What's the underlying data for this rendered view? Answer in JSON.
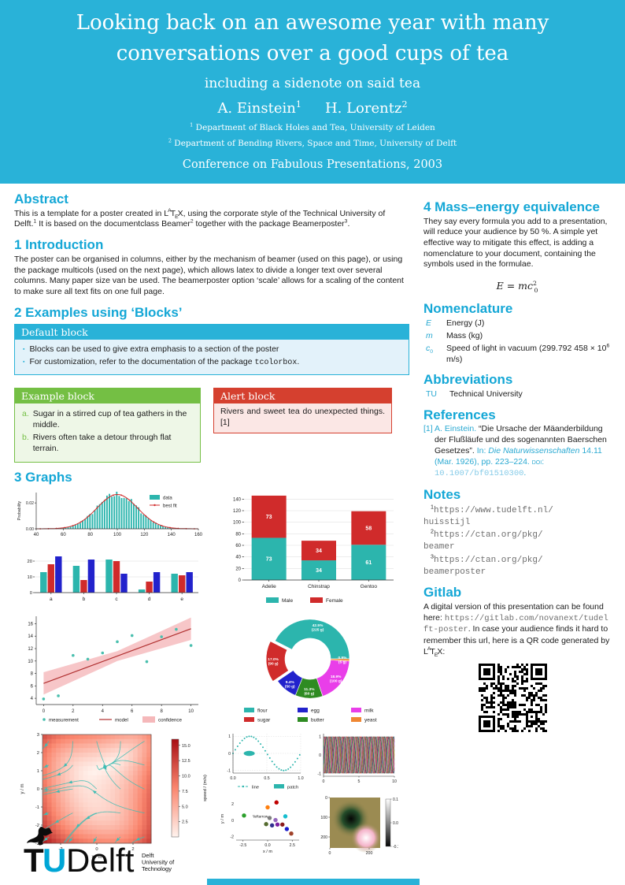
{
  "colors": {
    "header_bg": "#29b2d8",
    "heading_cyan": "#14a7d6",
    "teal": "#2cb5ad",
    "red": "#d02b2b",
    "blue": "#2222cc",
    "green_block": "#74bf44",
    "alert_red": "#d5402f",
    "stream_line": "#3fbcb4",
    "band_pink": "#f5b8ba",
    "model_red": "#b03030"
  },
  "header": {
    "title": "Looking back on an awesome year with many conversations over a good cups of tea",
    "subtitle": "including a sidenote on said tea",
    "authors": [
      {
        "t": "A. Einstein"
      },
      {
        "t": "1",
        "sup": true
      },
      {
        "t": "H. Lorentz",
        "s": "gap"
      },
      {
        "t": "2",
        "sup": true
      }
    ],
    "affil1": [
      {
        "t": "1",
        "sup": true
      },
      {
        "t": " Department of Black Holes and Tea, University of Leiden"
      }
    ],
    "affil2": [
      {
        "t": "2",
        "sup": true
      },
      {
        "t": " Department of Bending Rivers, Space and Time, University of Delft"
      }
    ],
    "conference": "Conference on Fabulous Presentations, 2003"
  },
  "abstract": {
    "heading": "Abstract",
    "body": [
      {
        "t": "This is a template for a poster created in "
      },
      {
        "t": "L"
      },
      {
        "t": "A",
        "sup": true,
        "s": "texA"
      },
      {
        "t": "T"
      },
      {
        "t": "E",
        "sub": true,
        "s": "texE"
      },
      {
        "t": "X"
      },
      {
        "t": ", using the corporate style of the Technical University of Delft."
      },
      {
        "t": "1",
        "sup": true
      },
      {
        "t": " It is based on the documentclass Beamer"
      },
      {
        "t": "2",
        "sup": true
      },
      {
        "t": " together with the package Beamerposter"
      },
      {
        "t": "3",
        "sup": true
      },
      {
        "t": "."
      }
    ]
  },
  "introduction": {
    "heading": "1 Introduction",
    "body": "The poster can be organised in columns, either by the mechanism of beamer (used on this page), or using the package multicols (used on the next page), which allows latex to divide a longer text over several columns. Many paper size van be used. The beamerposter option ‘scale’ allows for a scaling of the content to make sure all text fits on one full page."
  },
  "blocks": {
    "heading": "2 Examples using ‘Blocks’",
    "default_block": {
      "title": "Default block",
      "bullets": [
        [
          {
            "t": "Blocks can be used to give extra emphasis to a section of the poster"
          }
        ],
        [
          {
            "t": "For customization, refer to the documentation of the package "
          },
          {
            "t": "tcolorbox",
            "s": "mono"
          },
          {
            "t": "."
          }
        ]
      ]
    },
    "example_block": {
      "title": "Example block",
      "items": [
        {
          "label": "a.",
          "text": "Sugar in a stirred cup of tea gathers in the middle."
        },
        {
          "label": "b.",
          "text": "Rivers often take a detour through flat terrain."
        }
      ]
    },
    "alert_block": {
      "title": "Alert block",
      "text": "Rivers and sweet tea do unexpected things.[1]"
    }
  },
  "graphs_heading": "3 Graphs",
  "right": {
    "sec4": {
      "heading": "4 Mass–energy equivalence",
      "body": "They say every formula you add to a presentation, will reduce your audience by 50 %. A simple yet effective way to mitigate this effect, is adding a nomenclature to your document, containing the symbols used in the formulae.",
      "formula": [
        {
          "t": "E",
          "s": "it"
        },
        {
          "t": " = "
        },
        {
          "t": "mc",
          "s": "it"
        },
        {
          "t": "2",
          "s": "fsup"
        },
        {
          "t": "0",
          "s": "fsub"
        }
      ]
    },
    "nomenclature": {
      "heading": "Nomenclature",
      "entries": [
        {
          "sym": [
            {
              "t": "E",
              "s": "it"
            }
          ],
          "desc": [
            {
              "t": "Energy (J)"
            }
          ]
        },
        {
          "sym": [
            {
              "t": "m",
              "s": "it"
            }
          ],
          "desc": [
            {
              "t": "Mass (kg)"
            }
          ]
        },
        {
          "sym": [
            {
              "t": "c",
              "s": "it"
            },
            {
              "t": "0",
              "sub": true
            }
          ],
          "desc": [
            {
              "t": "Speed of light in vacuum (299.792 458 × 10"
            },
            {
              "t": "6",
              "sup": true
            },
            {
              "t": " m/s)"
            }
          ]
        }
      ]
    },
    "abbreviations": {
      "heading": "Abbreviations",
      "entries": [
        {
          "abbr": "TU",
          "desc": "Technical University"
        }
      ]
    },
    "references": {
      "heading": "References",
      "items": [
        [
          {
            "t": "[1] ",
            "s": "cy"
          },
          {
            "t": "A. Einstein. ",
            "s": "cy"
          },
          {
            "t": "“Die Ursache der Mäanderbildung der Flußläufe und des sogenannten Baerschen Gesetzes”. "
          },
          {
            "t": "In: ",
            "s": "cy"
          },
          {
            "t": "Die Naturwissenschaften ",
            "s": "cy it"
          },
          {
            "t": "14.11 (Mar. 1926), pp. 223–224. ",
            "s": "cy"
          },
          {
            "t": "doi: ",
            "s": "cy sc"
          },
          {
            "t": "10.1007/bf01510300",
            "s": "doi"
          },
          {
            "t": ".",
            "s": "cy"
          }
        ]
      ]
    },
    "notes": {
      "heading": "Notes",
      "items": [
        [
          {
            "t": "1",
            "sup": true
          },
          {
            "t": "https://www.tudelft.nl/\nhuisstijl",
            "s": "murl"
          }
        ],
        [
          {
            "t": "2",
            "sup": true
          },
          {
            "t": "https://ctan.org/pkg/\nbeamer",
            "s": "murl"
          }
        ],
        [
          {
            "t": "3",
            "sup": true
          },
          {
            "t": "https://ctan.org/pkg/\nbeamerposter",
            "s": "murl"
          }
        ]
      ]
    },
    "gitlab": {
      "heading": "Gitlab",
      "body": [
        {
          "t": "A digital version of this presentation can be found here: "
        },
        {
          "t": "https://gitlab.com/novanext/tudelft-poster",
          "s": "murl"
        },
        {
          "t": ". In case your audience finds it hard to remember this url, here is a QR code generated by "
        },
        {
          "t": "L"
        },
        {
          "t": "A",
          "sup": true,
          "s": "texA"
        },
        {
          "t": "T"
        },
        {
          "t": "E",
          "sub": true,
          "s": "texE"
        },
        {
          "t": "X"
        },
        {
          "t": ":"
        }
      ]
    }
  },
  "logo": {
    "tu_t": "T",
    "tu_u": "U",
    "delft": "Delft",
    "tagline": [
      "Delft",
      "University of",
      "Technology"
    ]
  },
  "chart_data": [
    {
      "id": "histogram",
      "type": "area",
      "ylabel": "Probability",
      "xticks": [
        "40",
        "60",
        "80",
        "100",
        "120",
        "140",
        "160"
      ],
      "yticks": [
        "0.00",
        "0.02"
      ],
      "mu": 100,
      "sigma": 15,
      "peak": 0.0265,
      "legend": [
        {
          "label": "data",
          "color": "#2cb5ad"
        },
        {
          "label": "best fit",
          "color": "#d02b2b"
        }
      ],
      "xlim": [
        40,
        160
      ],
      "ylim": [
        0,
        0.028
      ]
    },
    {
      "id": "grouped_bar",
      "type": "bar",
      "categories": [
        "a",
        "b",
        "c",
        "d",
        "e"
      ],
      "series": [
        {
          "name": "series-teal",
          "color": "#2cb5ad",
          "values": [
            13,
            17,
            21,
            2,
            12
          ]
        },
        {
          "name": "series-red",
          "color": "#d02b2b",
          "values": [
            18,
            8,
            20,
            7,
            11
          ]
        },
        {
          "name": "series-blue",
          "color": "#2222cc",
          "values": [
            23,
            21,
            12,
            13,
            13
          ]
        }
      ],
      "yticks": [
        0,
        10,
        20
      ],
      "ylim": [
        0,
        25
      ]
    },
    {
      "id": "stacked_bar",
      "type": "bar",
      "stacked": true,
      "categories": [
        "Adelie",
        "Chinstrap",
        "Gentoo"
      ],
      "series": [
        {
          "name": "Male",
          "color": "#2cb5ad",
          "values": [
            73,
            34,
            61
          ]
        },
        {
          "name": "Female",
          "color": "#d02b2b",
          "values": [
            73,
            34,
            58
          ]
        }
      ],
      "yticks": [
        0,
        20,
        40,
        60,
        80,
        100,
        120,
        140
      ],
      "ylim": [
        0,
        150
      ],
      "legend": [
        "Male",
        "Female"
      ]
    },
    {
      "id": "regression",
      "type": "scatter",
      "points": [
        [
          0,
          3.9
        ],
        [
          1,
          4.4
        ],
        [
          2,
          10.9
        ],
        [
          3,
          10.3
        ],
        [
          4,
          11.3
        ],
        [
          5,
          13.1
        ],
        [
          6,
          14.1
        ],
        [
          7,
          9.9
        ],
        [
          8,
          13.9
        ],
        [
          9,
          15.1
        ],
        [
          10,
          12.5
        ]
      ],
      "model": [
        [
          0,
          6.4
        ],
        [
          10,
          15.2
        ]
      ],
      "band_upper": [
        [
          0,
          8.2
        ],
        [
          5,
          11.6
        ],
        [
          10,
          17.0
        ]
      ],
      "band_lower": [
        [
          0,
          4.6
        ],
        [
          5,
          10.0
        ],
        [
          10,
          13.4
        ]
      ],
      "xticks": [
        0,
        2,
        4,
        6,
        8,
        10
      ],
      "yticks": [
        4,
        6,
        8,
        10,
        12,
        14,
        16
      ],
      "xlim": [
        -0.5,
        10.5
      ],
      "ylim": [
        3,
        17.2
      ],
      "legend": [
        "measurement",
        "model",
        "confidence"
      ]
    },
    {
      "id": "donut",
      "type": "pie",
      "slices": [
        {
          "label": "flour",
          "pct": 42.5,
          "grams": 225,
          "color": "#2cb5ad",
          "explode": false
        },
        {
          "label": "sugar",
          "pct": 17.0,
          "grams": 90,
          "color": "#d02b2b",
          "explode": true
        },
        {
          "label": "egg",
          "pct": 9.4,
          "grams": 50,
          "color": "#2222cc",
          "explode": false
        },
        {
          "label": "butter",
          "pct": 11.3,
          "grams": 60,
          "color": "#2e8b22",
          "explode": false
        },
        {
          "label": "milk",
          "pct": 18.9,
          "grams": 100,
          "color": "#e93ee9",
          "explode": false
        },
        {
          "label": "yeast",
          "pct": 0.9,
          "grams": 5,
          "color": "#ef8733",
          "explode": false
        }
      ],
      "legend_columns": [
        [
          "flour",
          "sugar"
        ],
        [
          "egg",
          "butter"
        ],
        [
          "milk",
          "yeast"
        ]
      ]
    },
    {
      "id": "stream",
      "type": "heatmap",
      "xlabel": "x / m",
      "ylabel": "y / m",
      "xticks": [
        -2,
        0,
        2
      ],
      "yticks": [
        -3,
        -2,
        -1,
        0,
        1,
        2,
        3
      ],
      "xlim": [
        -3,
        3
      ],
      "ylim": [
        -3,
        3
      ],
      "colorbar_label": "speed / (m/s)",
      "colorbar_ticks": [
        "2.5",
        "5.0",
        "7.5",
        "10.0",
        "12.5",
        "15.0"
      ],
      "speed_max": 17
    },
    {
      "id": "sine",
      "type": "line",
      "xticks": [
        "0.0",
        "0.5",
        "1.0"
      ],
      "yticks": [
        "-1",
        "0",
        "1"
      ],
      "legend": [
        "line",
        "patch"
      ],
      "color": "#2cb5ad"
    },
    {
      "id": "mesh",
      "type": "line",
      "xticks": [
        "0",
        "5",
        "10"
      ],
      "yticks": [
        "-1",
        "0",
        "1"
      ],
      "n_curves": 24,
      "palette": [
        "#1f77b4",
        "#ff7f0e",
        "#2ca02c",
        "#d62728",
        "#9467bd",
        "#8c564b",
        "#e377c2",
        "#7f7f7f",
        "#bcbd22",
        "#17becf",
        "#111111",
        "#dd2288"
      ]
    },
    {
      "id": "scatter2",
      "type": "scatter",
      "xlabel": "x / m",
      "ylabel": "y / m",
      "xticks": [
        "-2.5",
        "0.0",
        "2.5"
      ],
      "yticks": [
        "-2",
        "0",
        "2"
      ],
      "annotation": "\\leftarrow",
      "points": [
        {
          "x": -2.4,
          "y": 0.6,
          "c": "#2ca02c"
        },
        {
          "x": 0.0,
          "y": 1.6,
          "c": "#ff7f0e"
        },
        {
          "x": 0.9,
          "y": 2.2,
          "c": "#c00000"
        },
        {
          "x": 1.8,
          "y": 0.5,
          "c": "#17becf"
        },
        {
          "x": 0.2,
          "y": 0.3,
          "c": "#7f7f7f"
        },
        {
          "x": 0.8,
          "y": 0.05,
          "c": "#9467bd"
        },
        {
          "x": -0.15,
          "y": -0.45,
          "c": "#556b2f"
        },
        {
          "x": 0.45,
          "y": -0.6,
          "c": "#312f8f"
        },
        {
          "x": 1.0,
          "y": -0.5,
          "c": "#7b1fa2"
        },
        {
          "x": 1.5,
          "y": -0.5,
          "c": "#8b1a1a"
        },
        {
          "x": 1.95,
          "y": -1.05,
          "c": "#1a1acc"
        },
        {
          "x": 2.4,
          "y": -1.6,
          "c": "#a0422a"
        }
      ]
    },
    {
      "id": "imshow",
      "type": "heatmap",
      "xticks": [
        "0",
        "200"
      ],
      "yticks": [
        "0",
        "100",
        "200"
      ],
      "colorbar_ticks": [
        "0.1",
        "0.0",
        "-0.1"
      ],
      "bg": "#9b8b52"
    }
  ]
}
